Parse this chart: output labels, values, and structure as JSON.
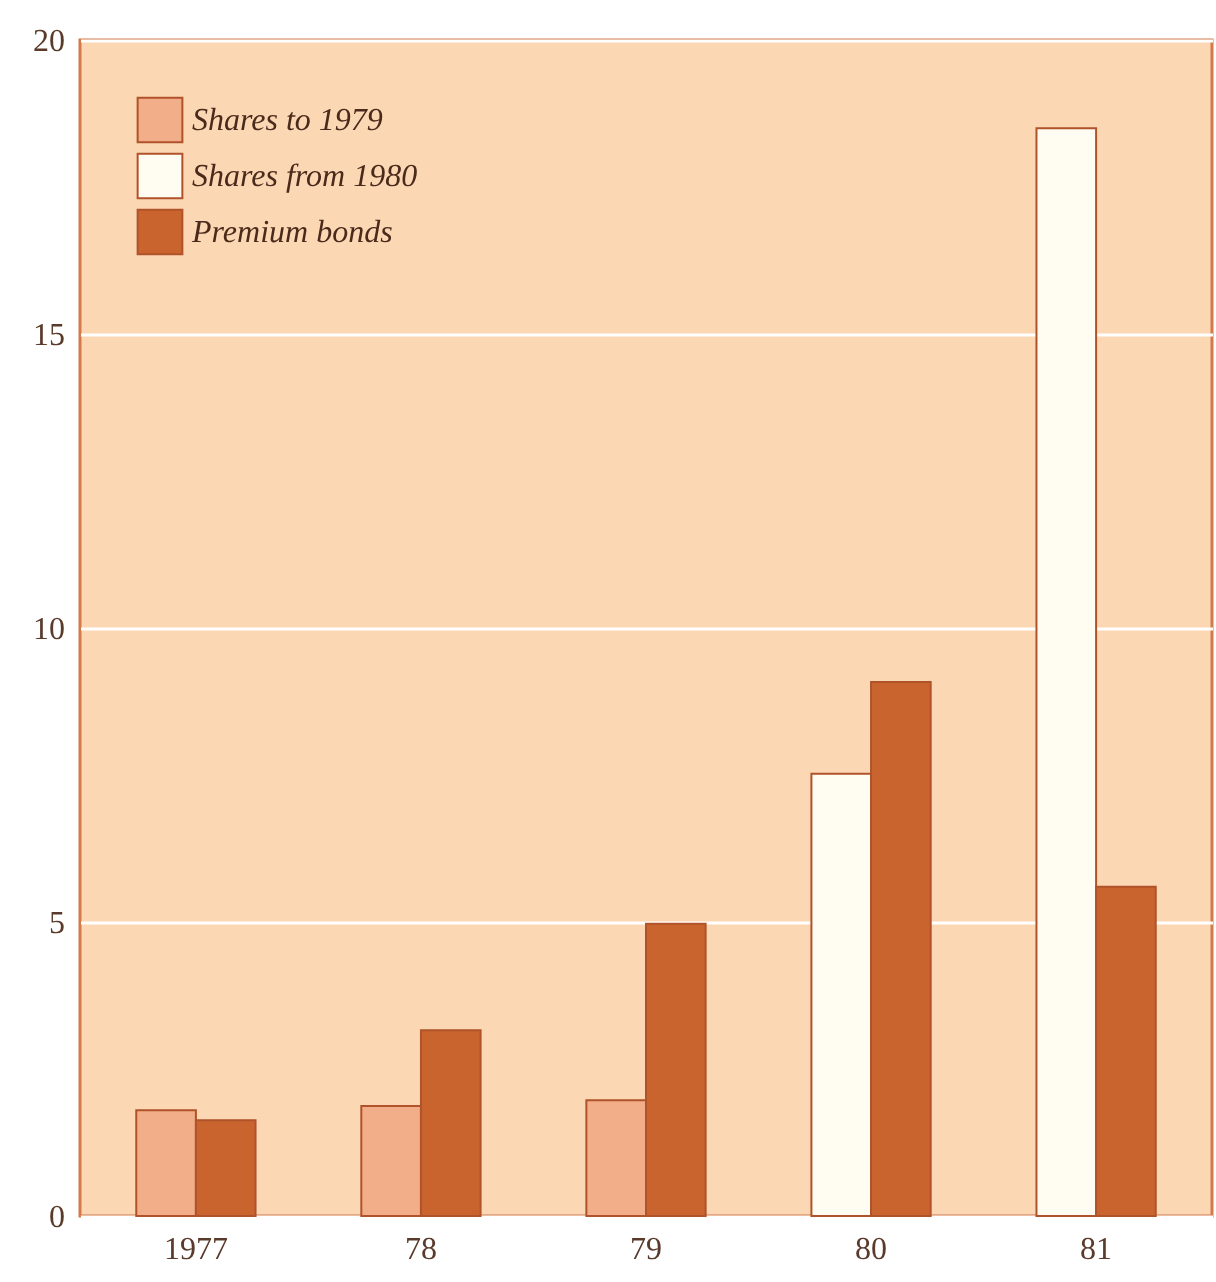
{
  "chart_data": {
    "type": "bar",
    "categories": [
      "1977",
      "78",
      "79",
      "80",
      "81"
    ],
    "series": [
      {
        "name": "Shares to 1979",
        "color": "#f2ae88",
        "values": [
          1.8,
          1.87,
          1.97,
          null,
          null
        ]
      },
      {
        "name": "Shares from 1980",
        "color": "#fffcf2",
        "values": [
          null,
          null,
          null,
          7.52,
          18.5
        ]
      },
      {
        "name": "Premium bonds",
        "color": "#c9642f",
        "values": [
          1.63,
          3.16,
          4.97,
          9.08,
          5.6
        ]
      }
    ],
    "ylim": [
      0,
      20
    ],
    "yticks": [
      0,
      5,
      10,
      15,
      20
    ],
    "grid": "y",
    "legend": "top left"
  }
}
